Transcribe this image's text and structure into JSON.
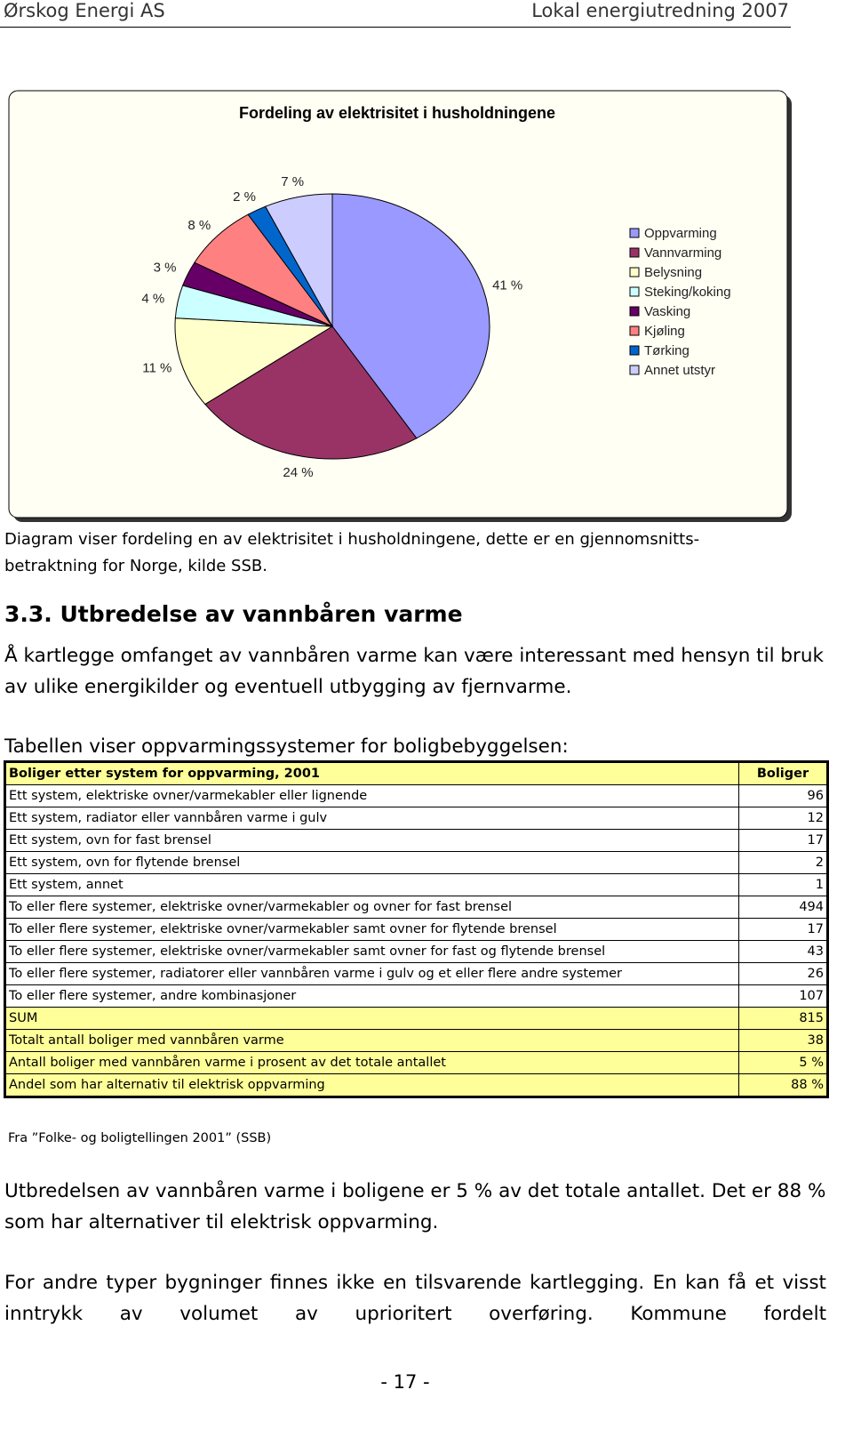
{
  "header": {
    "left": "Ørskog Energi AS",
    "right": "Lokal energiutredning 2007"
  },
  "chart_data": {
    "type": "pie",
    "title": "Fordeling av elektrisitet i husholdningene",
    "categories": [
      "Oppvarming",
      "Vannvarming",
      "Belysning",
      "Steking/koking",
      "Vasking",
      "Kjøling",
      "Tørking",
      "Annet utstyr"
    ],
    "values": [
      41,
      24,
      11,
      4,
      3,
      8,
      2,
      7
    ],
    "value_labels": [
      "41 %",
      "24 %",
      "11 %",
      "4 %",
      "3 %",
      "8 %",
      "2 %",
      "7 %"
    ],
    "colors": [
      "#9999ff",
      "#993366",
      "#ffffcc",
      "#ccffff",
      "#660066",
      "#ff8080",
      "#0066cc",
      "#ccccff"
    ],
    "legend": "right"
  },
  "caption": "Diagram viser fordeling en av elektrisitet i husholdningene, dette er en gjennomsnitts-betraktning for Norge, kilde SSB.",
  "heading": "3.3. Utbredelse av vannbåren varme",
  "paragraphs": [
    "Å kartlegge omfanget av vannbåren varme kan være interessant med hensyn til bruk av ulike energikilder og eventuell utbygging av fjernvarme.",
    "Tabellen viser oppvarmingssystemer for boligbebyggelsen:"
  ],
  "table": {
    "header": [
      "Boliger etter system for oppvarming, 2001",
      "Boliger"
    ],
    "rows": [
      [
        "Ett system, elektriske ovner/varmekabler eller lignende",
        96
      ],
      [
        "Ett system, radiator eller vannbåren varme i gulv",
        12
      ],
      [
        "Ett system, ovn for fast brensel",
        17
      ],
      [
        "Ett system, ovn for flytende brensel",
        2
      ],
      [
        "Ett system, annet",
        1
      ],
      [
        "To eller flere systemer, elektriske ovner/varmekabler og ovner for fast brensel",
        494
      ],
      [
        "To eller flere systemer, elektriske ovner/varmekabler samt ovner for flytende brensel",
        17
      ],
      [
        "To eller flere systemer, elektriske ovner/varmekabler samt ovner for fast og flytende brensel",
        43
      ],
      [
        "To eller flere systemer, radiatorer eller vannbåren varme i gulv og et eller flere andre systemer",
        26
      ],
      [
        "To eller flere systemer, andre kombinasjoner",
        107
      ],
      [
        "SUM",
        815
      ],
      [
        "Totalt antall boliger med vannbåren varme",
        38
      ],
      [
        "Antall boliger med vannbåren varme i prosent av det totale antallet",
        "5 %"
      ],
      [
        "Andel som har alternativ til elektrisk oppvarming",
        "88 %"
      ]
    ],
    "source": "Fra ”Folke- og boligtellingen 2001” (SSB)"
  },
  "after": [
    "Utbredelsen av vannbåren varme i boligene er 5 % av det totale antallet. Det er 88 % som har alternativer til elektrisk oppvarming.",
    "For andre typer bygninger finnes ikke en tilsvarende kartlegging. En kan få et visst inntrykk av volumet av uprioritert overføring. Kommune fordelt"
  ],
  "page_number": "- 17 -"
}
